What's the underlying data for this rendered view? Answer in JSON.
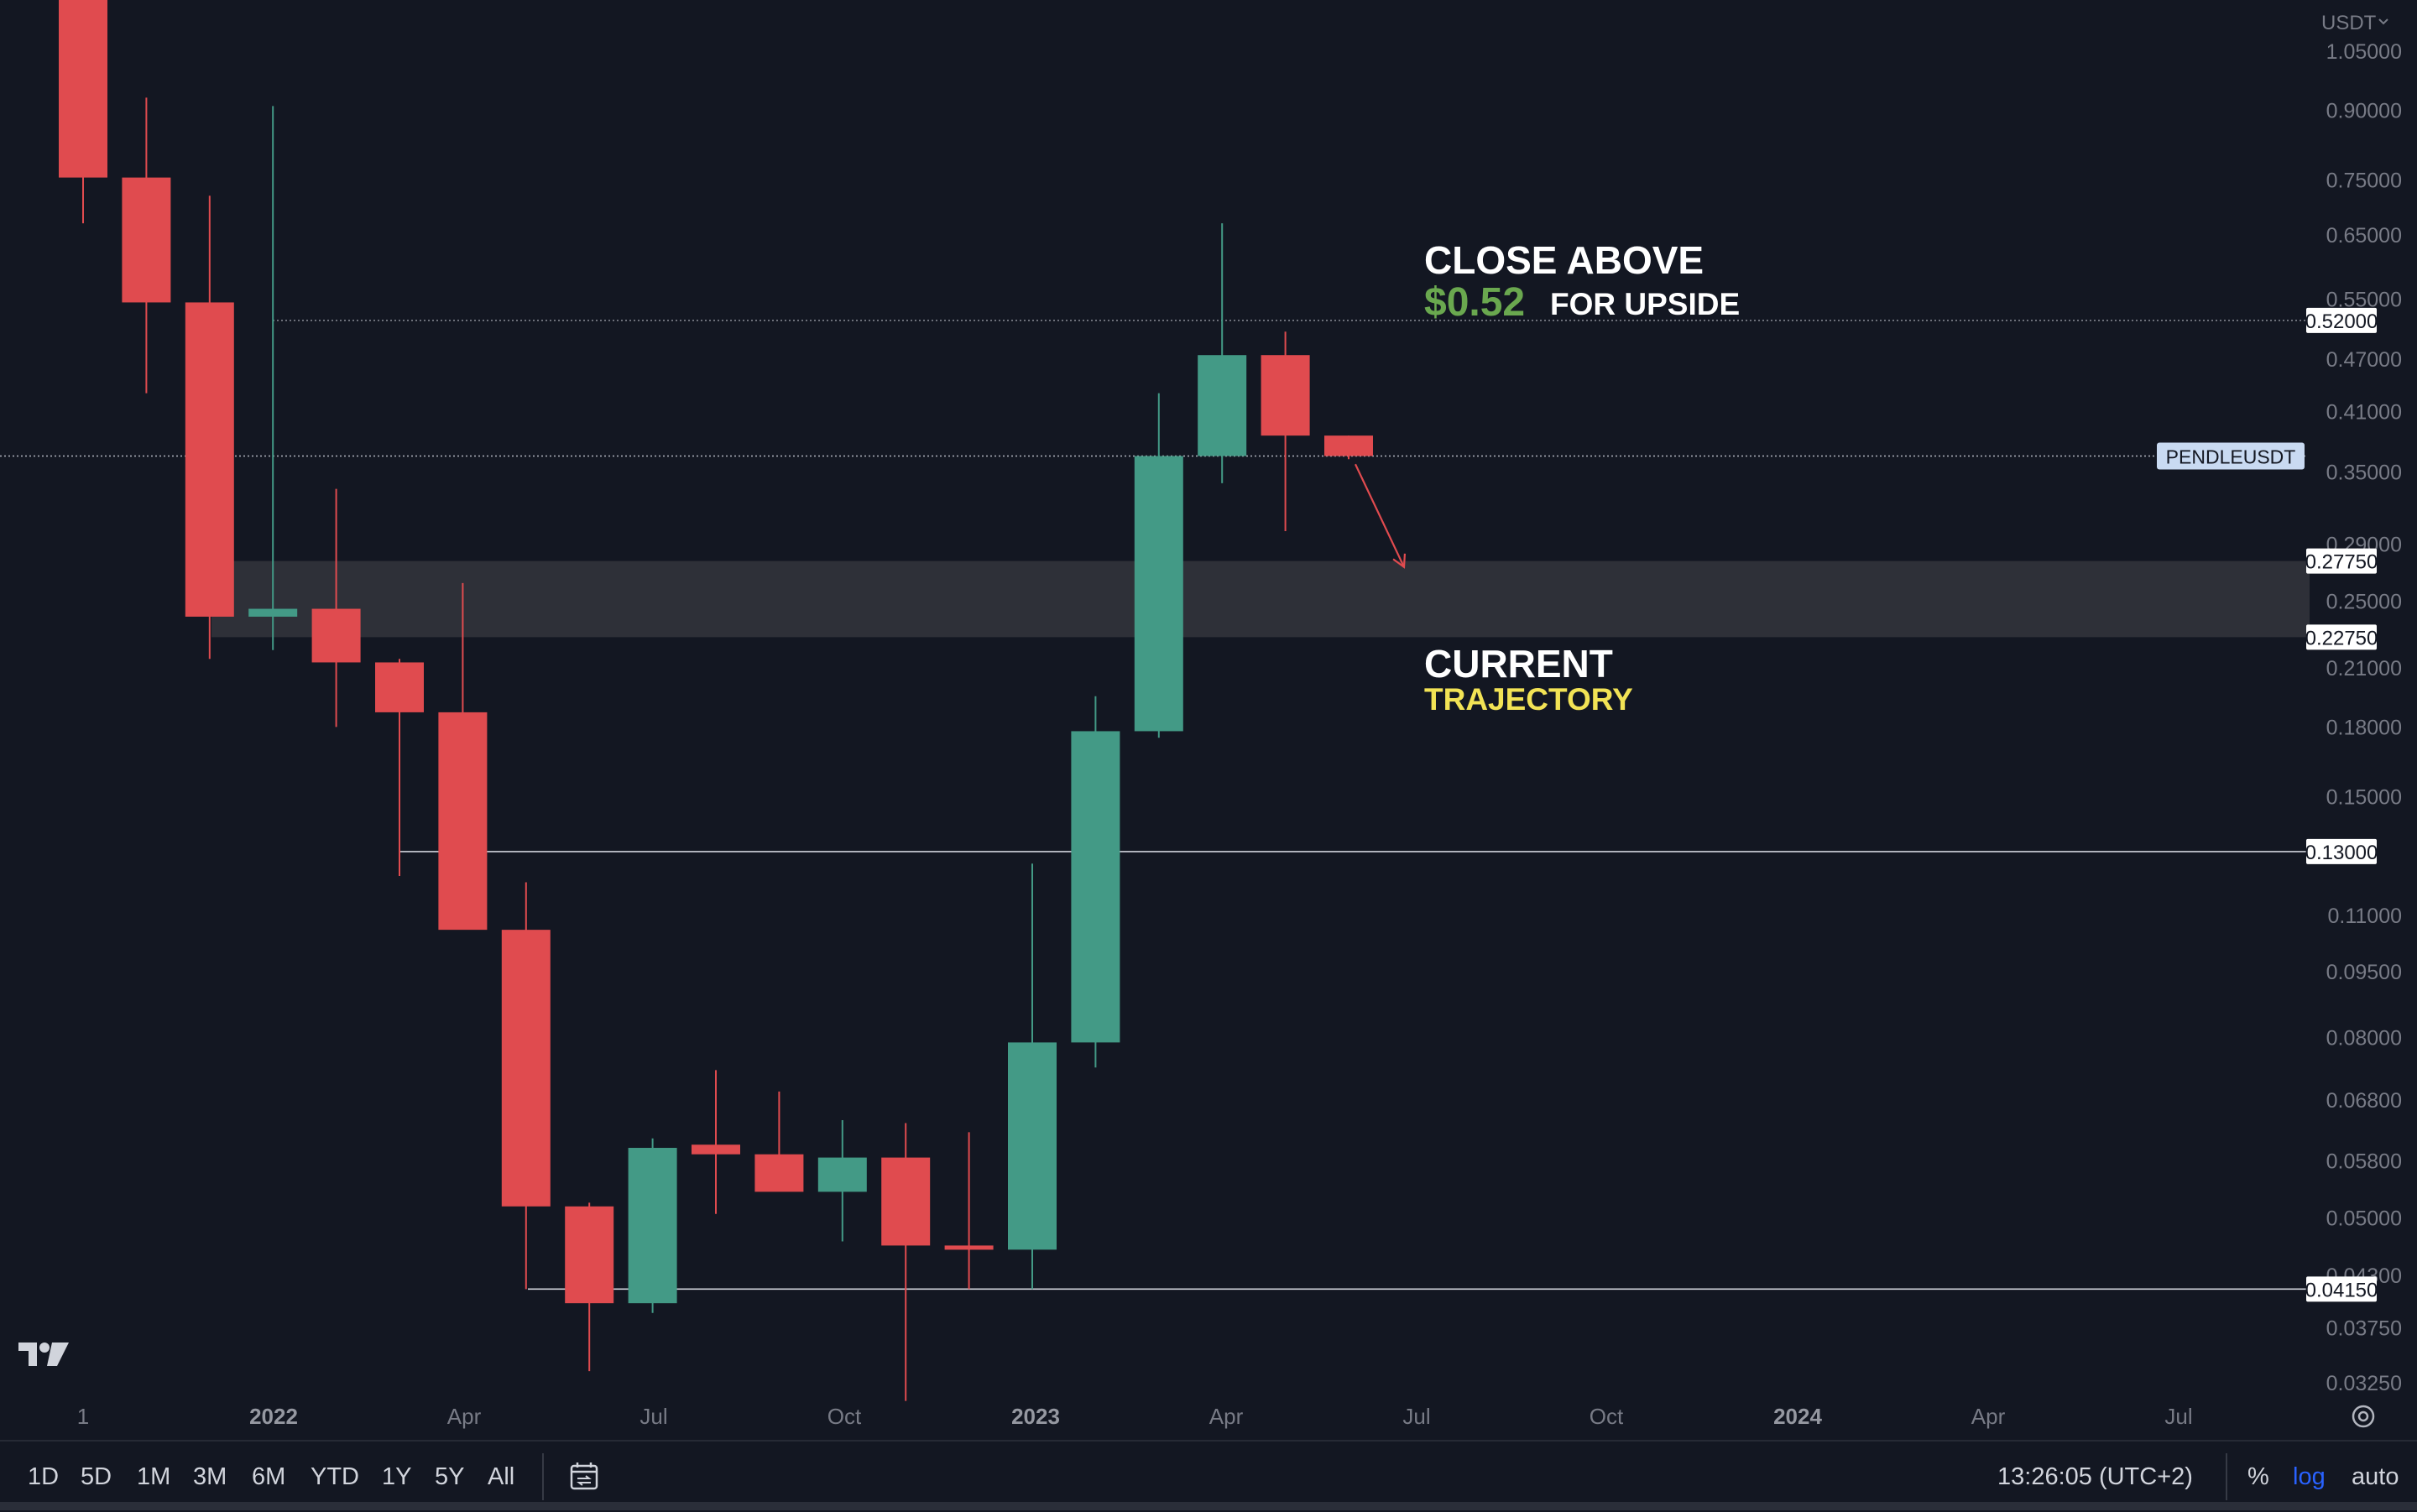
{
  "chart_data": {
    "type": "candlestick",
    "symbol": "PENDLEUSDT",
    "currency": "USDT",
    "scale": "log",
    "ylim": [
      0.0303,
      1.2
    ],
    "interval": "1M",
    "candles": [
      {
        "month": "2021-08",
        "open": 1.2,
        "high": 1.2,
        "low": 0.67,
        "close": 0.755
      },
      {
        "month": "2021-09",
        "open": 0.755,
        "high": 0.93,
        "low": 0.43,
        "close": 0.545
      },
      {
        "month": "2021-10",
        "open": 0.545,
        "high": 0.72,
        "low": 0.215,
        "close": 0.24
      },
      {
        "month": "2021-11",
        "open": 0.24,
        "high": 0.91,
        "low": 0.22,
        "close": 0.245
      },
      {
        "month": "2021-12",
        "open": 0.245,
        "high": 0.335,
        "low": 0.18,
        "close": 0.213
      },
      {
        "month": "2022-01",
        "open": 0.213,
        "high": 0.215,
        "low": 0.122,
        "close": 0.187
      },
      {
        "month": "2022-02",
        "open": 0.187,
        "high": 0.262,
        "low": 0.112,
        "close": 0.106
      },
      {
        "month": "2022-03",
        "open": 0.106,
        "high": 0.12,
        "low": 0.0415,
        "close": 0.0515
      },
      {
        "month": "2022-04",
        "open": 0.0515,
        "high": 0.052,
        "low": 0.0335,
        "close": 0.04
      },
      {
        "month": "2022-05",
        "open": 0.04,
        "high": 0.0615,
        "low": 0.039,
        "close": 0.06
      },
      {
        "month": "2022-06",
        "open": 0.0605,
        "high": 0.0735,
        "low": 0.0505,
        "close": 0.059
      },
      {
        "month": "2022-07",
        "open": 0.059,
        "high": 0.0695,
        "low": 0.0545,
        "close": 0.0535
      },
      {
        "month": "2022-08",
        "open": 0.0535,
        "high": 0.0645,
        "low": 0.047,
        "close": 0.0585
      },
      {
        "month": "2022-09",
        "open": 0.0585,
        "high": 0.064,
        "low": 0.031,
        "close": 0.0465
      },
      {
        "month": "2022-10",
        "open": 0.0465,
        "high": 0.0625,
        "low": 0.0415,
        "close": 0.0463
      },
      {
        "month": "2022-11",
        "open": 0.046,
        "high": 0.126,
        "low": 0.0415,
        "close": 0.079
      },
      {
        "month": "2022-12",
        "open": 0.079,
        "high": 0.195,
        "low": 0.074,
        "close": 0.178
      },
      {
        "month": "2023-01",
        "open": 0.178,
        "high": 0.43,
        "low": 0.175,
        "close": 0.365
      },
      {
        "month": "2023-02",
        "open": 0.365,
        "high": 0.67,
        "low": 0.34,
        "close": 0.475
      },
      {
        "month": "2023-03",
        "open": 0.475,
        "high": 0.505,
        "low": 0.3,
        "close": 0.385
      },
      {
        "month": "2023-04",
        "open": 0.385,
        "high": 0.385,
        "low": 0.362,
        "close": 0.365
      }
    ],
    "price_ticks": [
      "1.05000",
      "0.90000",
      "0.75000",
      "0.65000",
      "0.55000",
      "0.47000",
      "0.41000",
      "0.35000",
      "0.29000",
      "0.25000",
      "0.21000",
      "0.18000",
      "0.15000",
      "0.11000",
      "0.09500",
      "0.08000",
      "0.06800",
      "0.05800",
      "0.05000",
      "0.04300",
      "0.03750",
      "0.03250"
    ],
    "price_tick_values": [
      1.05,
      0.9,
      0.75,
      0.65,
      0.55,
      0.47,
      0.41,
      0.35,
      0.29,
      0.25,
      0.21,
      0.18,
      0.15,
      0.11,
      0.095,
      0.08,
      0.068,
      0.058,
      0.05,
      0.043,
      0.0375,
      0.0325
    ],
    "time_ticks": [
      {
        "label": "1",
        "bold": false
      },
      {
        "label": "2022",
        "bold": true
      },
      {
        "label": "Apr",
        "bold": false
      },
      {
        "label": "Jul",
        "bold": false
      },
      {
        "label": "Oct",
        "bold": false
      },
      {
        "label": "2023",
        "bold": true
      },
      {
        "label": "Apr",
        "bold": false
      },
      {
        "label": "Jul",
        "bold": false
      },
      {
        "label": "Oct",
        "bold": false
      },
      {
        "label": "2024",
        "bold": true
      },
      {
        "label": "Apr",
        "bold": false
      },
      {
        "label": "Jul",
        "bold": false
      }
    ],
    "levels": [
      {
        "price": 0.52,
        "label": "0.52000",
        "style": "dotted"
      },
      {
        "price": 0.13,
        "label": "0.13000",
        "style": "solid"
      },
      {
        "price": 0.0415,
        "label": "0.04150",
        "style": "solid"
      }
    ],
    "zone": {
      "top": 0.2775,
      "bottom": 0.2275,
      "top_label": "0.27750",
      "bottom_label": "0.22750"
    },
    "current_price": 0.365,
    "trajectory": {
      "from": 0.362,
      "to": 0.272
    },
    "annotations": {
      "close_above": "CLOSE ABOVE",
      "target_price": "$0.52",
      "for_upside": "FOR UPSIDE",
      "current": "CURRENT",
      "trajectory": "TRAJECTORY"
    },
    "colors": {
      "background": "#131722",
      "up": "#439a86",
      "down": "#e04b4f",
      "grid_text": "#787b86",
      "label_green": "#6aa84f",
      "label_yellow": "#f2e355",
      "zone_fill": "#2e3038",
      "symbol_badge_bg": "#c9daf2"
    }
  },
  "ui": {
    "timeframes": [
      "1D",
      "5D",
      "1M",
      "3M",
      "6M",
      "YTD",
      "1Y",
      "5Y",
      "All"
    ],
    "clock": "13:26:05 (UTC+2)",
    "percent_label": "%",
    "log_label": "log",
    "auto_label": "auto",
    "currency_menu": "USDT",
    "icons": {
      "compare": "calendar-range-icon",
      "settings": "settings-gear-icon",
      "logo": "tradingview-logo-icon",
      "chevron": "chevron-down-icon"
    }
  }
}
